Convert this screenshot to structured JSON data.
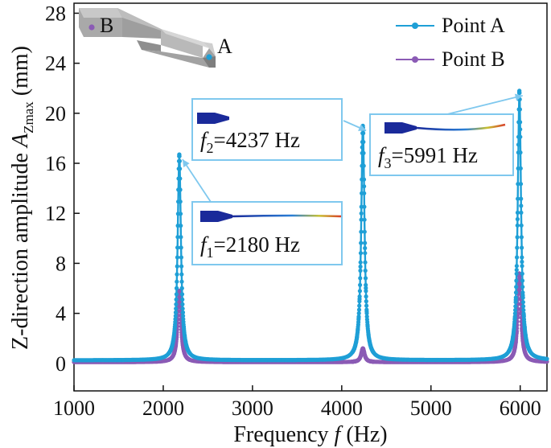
{
  "chart_data": {
    "type": "line",
    "xlabel_prefix": "Frequency ",
    "xlabel_var": "f",
    "xlabel_suffix": " (Hz)",
    "ylabel_prefix": "Z-direction amplitude ",
    "ylabel_var": "A",
    "ylabel_sub": "Zmax",
    "ylabel_suffix": " (mm)",
    "xlim": [
      1000,
      6300
    ],
    "ylim": [
      -2.2,
      28.8
    ],
    "xticks": [
      1000,
      2000,
      3000,
      4000,
      5000,
      6000
    ],
    "yticks": [
      0,
      4,
      8,
      12,
      16,
      20,
      24,
      28
    ],
    "grid": false,
    "legend_position": "top-right",
    "series": [
      {
        "name": "Point A",
        "color": "#1e9fd6",
        "marker": "circle",
        "peaks": [
          {
            "freq": 2180,
            "amp": 16.7
          },
          {
            "freq": 4237,
            "amp": 19.0
          },
          {
            "freq": 5991,
            "amp": 21.8
          }
        ],
        "baseline": 0.25
      },
      {
        "name": "Point B",
        "color": "#8b5bb5",
        "marker": "circle",
        "peaks": [
          {
            "freq": 2180,
            "amp": 5.8
          },
          {
            "freq": 4237,
            "amp": 1.2
          },
          {
            "freq": 5991,
            "amp": 7.2
          }
        ],
        "baseline": 0.1
      }
    ],
    "annotations": [
      {
        "var": "f",
        "sub": "1",
        "value": "=2180 Hz",
        "peak_freq": 2180,
        "peak_amp": 16.7
      },
      {
        "var": "f",
        "sub": "2",
        "value": "=4237 Hz",
        "peak_freq": 4237,
        "peak_amp": 19.0
      },
      {
        "var": "f",
        "sub": "3",
        "value": "=5991 Hz",
        "peak_freq": 5991,
        "peak_amp": 21.8
      }
    ],
    "inset": {
      "label_b": "B",
      "label_a": "A",
      "point_b_color": "#8b5bb5",
      "point_a_color": "#1e9fd6"
    }
  }
}
